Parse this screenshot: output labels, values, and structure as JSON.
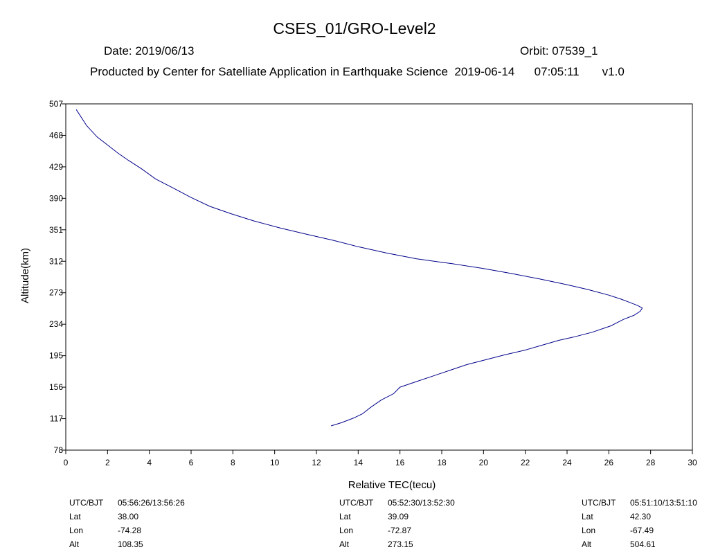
{
  "header": {
    "title": "CSES_01/GRO-Level2",
    "date_text": "Date: 2019/06/13",
    "orbit_text": "Orbit: 07539_1",
    "producer_text": "Producted by Center for Satelliate Application in Earthquake Science  2019-06-14      07:05:11       v1.0"
  },
  "chart_data": {
    "type": "line",
    "xlabel": "Relative TEC(tecu)",
    "ylabel": "Altitude(km)",
    "xlim": [
      0,
      30
    ],
    "ylim": [
      78,
      507
    ],
    "x_ticks": [
      0,
      2,
      4,
      6,
      8,
      10,
      12,
      14,
      16,
      18,
      20,
      22,
      24,
      26,
      28,
      30
    ],
    "y_ticks": [
      78,
      117,
      156,
      195,
      234,
      273,
      312,
      351,
      390,
      429,
      468,
      507
    ],
    "grid": false,
    "line_color": "#00008b",
    "series": [
      {
        "x": [
          12.7,
          13.2,
          13.8,
          14.2,
          14.6,
          15.1,
          15.7,
          16.0,
          16.8,
          17.6,
          18.4,
          19.2,
          20.1,
          21.0,
          22.0,
          22.8,
          23.6,
          24.3,
          25.2,
          26.1,
          26.7,
          27.2,
          27.5,
          27.6,
          27.4,
          27.0,
          26.6,
          26.0,
          25.0,
          24.0,
          22.7,
          21.3,
          20.0,
          18.5,
          16.8,
          15.4,
          14.0,
          12.8,
          11.6,
          10.3,
          9.0,
          7.9,
          6.9,
          6.0,
          5.2,
          4.3,
          3.6,
          3.0,
          2.5,
          2.0,
          1.5,
          1.0,
          0.5
        ],
        "y": [
          108,
          112,
          118,
          123,
          131,
          140,
          148,
          156,
          163,
          170,
          177,
          184,
          190,
          196,
          202,
          208,
          214,
          218,
          224,
          232,
          240,
          245,
          250,
          254,
          257,
          261,
          265,
          270,
          277,
          283,
          290,
          297,
          303,
          309,
          315,
          322,
          330,
          338,
          345,
          353,
          362,
          371,
          380,
          391,
          402,
          414,
          427,
          437,
          446,
          456,
          466,
          480,
          500
        ]
      }
    ]
  },
  "info_blocks": [
    {
      "rows": [
        {
          "k": "UTC/BJT",
          "v": "05:56:26/13:56:26"
        },
        {
          "k": "Lat",
          "v": "38.00"
        },
        {
          "k": "Lon",
          "v": "-74.28"
        },
        {
          "k": "Alt",
          "v": "108.35"
        }
      ]
    },
    {
      "rows": [
        {
          "k": "UTC/BJT",
          "v": "05:52:30/13:52:30"
        },
        {
          "k": "Lat",
          "v": "39.09"
        },
        {
          "k": "Lon",
          "v": "-72.87"
        },
        {
          "k": "Alt",
          "v": "273.15"
        }
      ]
    },
    {
      "rows": [
        {
          "k": "UTC/BJT",
          "v": "05:51:10/13:51:10"
        },
        {
          "k": "Lat",
          "v": "42.30"
        },
        {
          "k": "Lon",
          "v": "-67.49"
        },
        {
          "k": "Alt",
          "v": "504.61"
        }
      ]
    }
  ]
}
